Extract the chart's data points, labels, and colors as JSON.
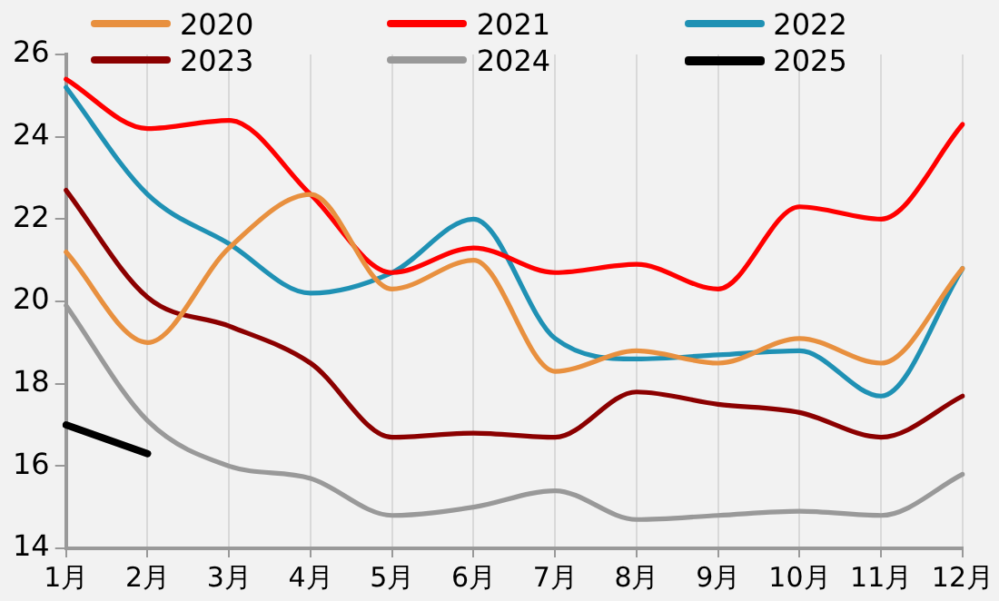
{
  "chart_data": {
    "type": "line",
    "categories": [
      "1月",
      "2月",
      "3月",
      "4月",
      "5月",
      "6月",
      "7月",
      "8月",
      "9月",
      "10月",
      "11月",
      "12月"
    ],
    "series": [
      {
        "name": "2020",
        "color": "#e8903f",
        "values": [
          21.2,
          19.0,
          21.3,
          22.6,
          20.3,
          21.0,
          18.3,
          18.8,
          18.5,
          19.1,
          18.5,
          20.8
        ]
      },
      {
        "name": "2021",
        "color": "#ff0000",
        "values": [
          25.4,
          24.2,
          24.4,
          22.6,
          20.7,
          21.3,
          20.7,
          20.9,
          20.3,
          22.3,
          22.0,
          24.3
        ]
      },
      {
        "name": "2022",
        "color": "#1f91b4",
        "values": [
          25.2,
          22.6,
          21.4,
          20.2,
          20.7,
          22.0,
          19.1,
          18.6,
          18.7,
          18.8,
          17.7,
          20.8
        ]
      },
      {
        "name": "2023",
        "color": "#8b0000",
        "values": [
          22.7,
          20.1,
          19.4,
          18.5,
          16.7,
          16.8,
          16.7,
          17.8,
          17.5,
          17.3,
          16.7,
          17.7
        ]
      },
      {
        "name": "2024",
        "color": "#999999",
        "values": [
          19.9,
          17.1,
          16.0,
          15.7,
          14.8,
          15.0,
          15.4,
          14.7,
          14.8,
          14.9,
          14.8,
          15.8
        ]
      },
      {
        "name": "2025",
        "color": "#000000",
        "values": [
          17.0,
          16.3,
          null,
          null,
          null,
          null,
          null,
          null,
          null,
          null,
          null,
          null
        ]
      }
    ],
    "ylim": [
      14,
      26
    ],
    "yticks": [
      14,
      16,
      18,
      20,
      22,
      24,
      26
    ],
    "grid": "x",
    "legend": "top",
    "marker": "none",
    "line_style": "solid"
  }
}
